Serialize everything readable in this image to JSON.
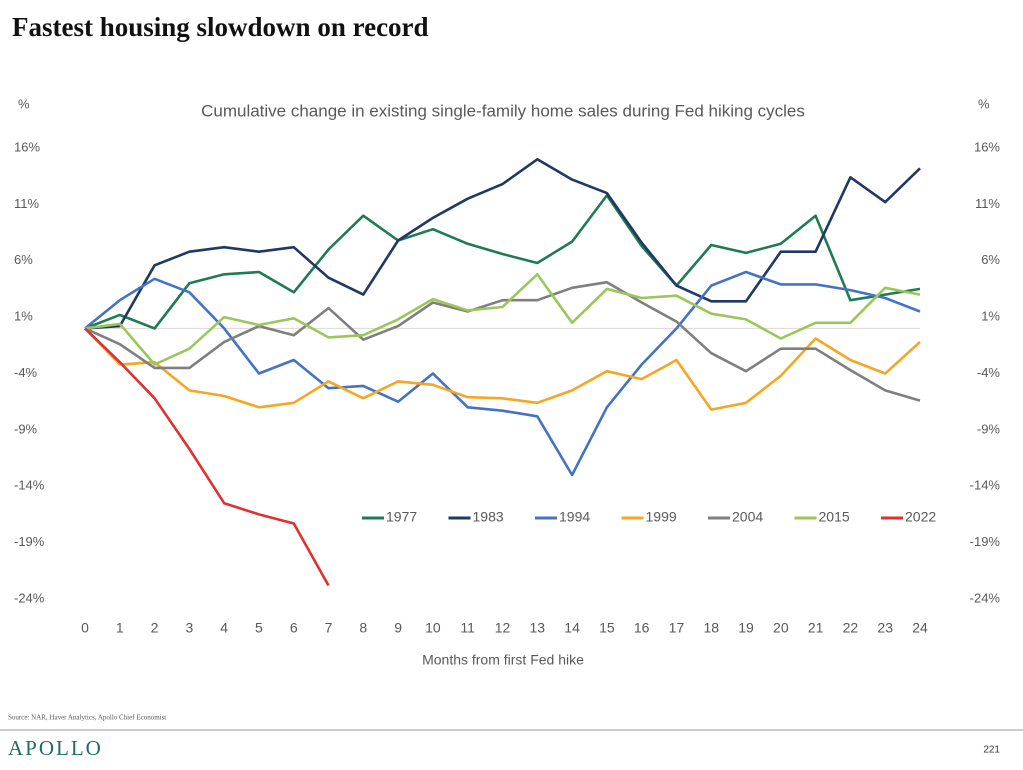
{
  "title": "Fastest housing slowdown on record",
  "source": "Source: NAR, Haver Analytics, Apollo Chief Economist",
  "brand": "APOLLO",
  "page_number": "221",
  "chart_data": {
    "type": "line",
    "subtitle": "Cumulative change in existing single-family home sales during Fed hiking cycles",
    "y_unit": "%",
    "x_label": "Months from first Fed hike",
    "categories": [
      "0",
      "1",
      "2",
      "3",
      "4",
      "5",
      "6",
      "7",
      "8",
      "9",
      "10",
      "11",
      "12",
      "13",
      "14",
      "15",
      "16",
      "17",
      "18",
      "19",
      "20",
      "21",
      "22",
      "23",
      "24"
    ],
    "ylim": [
      -24,
      16
    ],
    "yticks": [
      {
        "value": 16,
        "label": "16%"
      },
      {
        "value": 11,
        "label": "11%"
      },
      {
        "value": 6,
        "label": "6%"
      },
      {
        "value": 1,
        "label": "1%"
      },
      {
        "value": -4,
        "label": "-4%"
      },
      {
        "value": -9,
        "label": "-9%"
      },
      {
        "value": -14,
        "label": "-14%"
      },
      {
        "value": -19,
        "label": "-19%"
      },
      {
        "value": -24,
        "label": "-24%"
      }
    ],
    "series": [
      {
        "name": "1977",
        "color": "#1e7b53",
        "values": [
          0,
          1.2,
          0,
          4,
          4.8,
          5,
          3.2,
          7,
          10,
          7.8,
          8.8,
          7.5,
          6.6,
          5.8,
          7.7,
          11.8,
          7.3,
          3.8,
          7.4,
          6.7,
          7.5,
          10,
          2.5,
          3,
          3.5
        ]
      },
      {
        "name": "1983",
        "color": "#1f3864",
        "values": [
          0,
          0.2,
          5.6,
          6.8,
          7.2,
          6.8,
          7.2,
          4.5,
          3,
          7.8,
          9.8,
          11.5,
          12.8,
          15,
          13.2,
          12,
          7.6,
          3.8,
          2.4,
          2.4,
          6.8,
          6.8,
          13.4,
          11.2,
          14.2
        ]
      },
      {
        "name": "1994",
        "color": "#4472c4",
        "values": [
          0,
          2.5,
          4.4,
          3.2,
          0,
          -4,
          -2.8,
          -5.3,
          -5.1,
          -6.5,
          -4,
          -7,
          -7.3,
          -7.8,
          -13,
          -7,
          -3.2,
          0,
          3.8,
          5,
          3.9,
          3.9,
          3.4,
          2.7,
          1.5
        ]
      },
      {
        "name": "1999",
        "color": "#f5a623",
        "values": [
          0,
          -3.2,
          -3,
          -5.5,
          -6,
          -7,
          -6.6,
          -4.7,
          -6.2,
          -4.7,
          -5,
          -6.1,
          -6.2,
          -6.6,
          -5.5,
          -3.8,
          -4.5,
          -2.8,
          -7.2,
          -6.6,
          -4.2,
          -0.9,
          -2.8,
          -4,
          -1.2
        ]
      },
      {
        "name": "2004",
        "color": "#7f7f7f",
        "values": [
          0,
          -1.4,
          -3.5,
          -3.5,
          -1.2,
          0.2,
          -0.6,
          1.8,
          -1,
          0.2,
          2.3,
          1.5,
          2.5,
          2.5,
          3.6,
          4.1,
          2.3,
          0.6,
          -2.2,
          -3.8,
          -1.8,
          -1.8,
          -3.7,
          -5.5,
          -6.4
        ]
      },
      {
        "name": "2015",
        "color": "#9bc75a",
        "values": [
          0,
          0.4,
          -3.2,
          -1.8,
          1,
          0.3,
          0.9,
          -0.8,
          -0.6,
          0.8,
          2.6,
          1.6,
          1.9,
          4.8,
          0.5,
          3.5,
          2.7,
          2.9,
          1.3,
          0.8,
          -0.9,
          0.5,
          0.5,
          3.6,
          3
        ]
      },
      {
        "name": "2022",
        "color": "#e03030",
        "values": [
          0,
          -3,
          -6.2,
          -10.7,
          -15.5,
          -16.5,
          -17.3,
          -22.8,
          null,
          null,
          null,
          null,
          null,
          null,
          null,
          null,
          null,
          null,
          null,
          null,
          null,
          null,
          null,
          null,
          null
        ]
      }
    ]
  }
}
